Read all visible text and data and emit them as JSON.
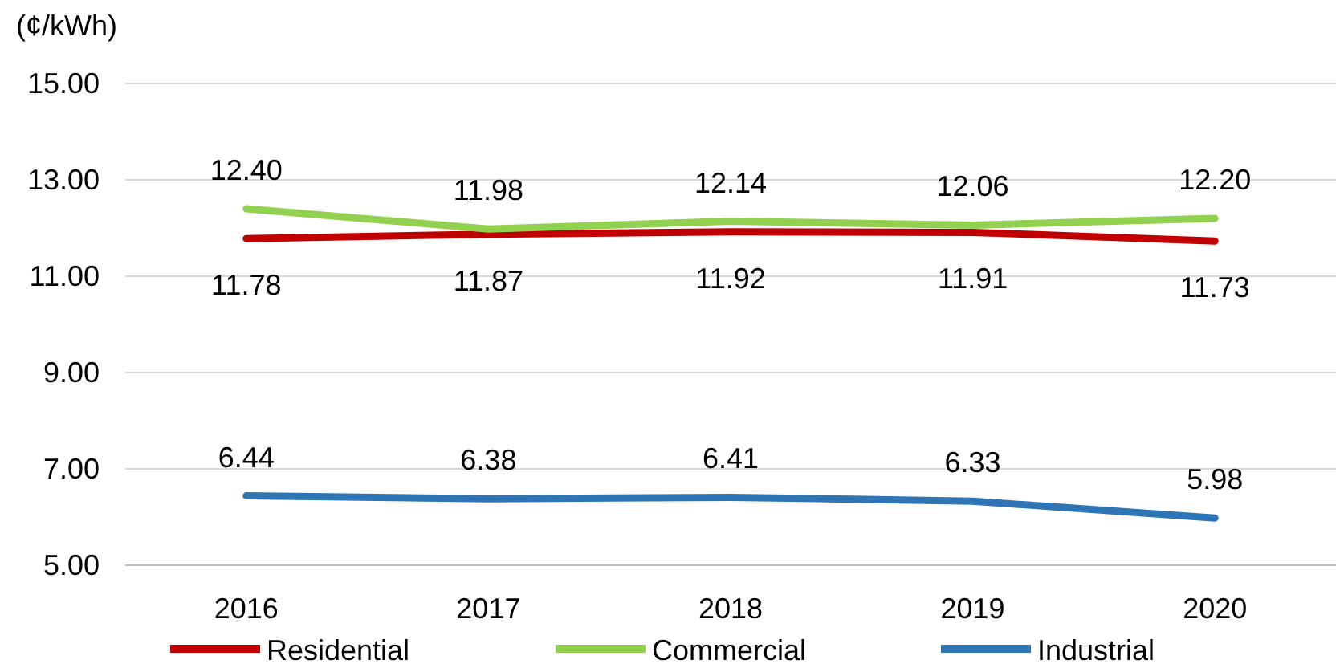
{
  "chart_data": {
    "type": "line",
    "ylabel": "(¢/kWh)",
    "categories": [
      "2016",
      "2017",
      "2018",
      "2019",
      "2020"
    ],
    "series": [
      {
        "name": "Residential",
        "color": "#c00000",
        "values": [
          11.78,
          11.87,
          11.92,
          11.91,
          11.73
        ],
        "value_labels": [
          "11.78",
          "11.87",
          "11.92",
          "11.91",
          "11.73"
        ]
      },
      {
        "name": "Commercial",
        "color": "#92d050",
        "values": [
          12.4,
          11.98,
          12.14,
          12.06,
          12.2
        ],
        "value_labels": [
          "12.40",
          "11.98",
          "12.14",
          "12.06",
          "12.20"
        ]
      },
      {
        "name": "Industrial",
        "color": "#2e75b6",
        "values": [
          6.44,
          6.38,
          6.41,
          6.33,
          5.98
        ],
        "value_labels": [
          "6.44",
          "6.38",
          "6.41",
          "6.33",
          "5.98"
        ]
      }
    ],
    "ylim": [
      5,
      15
    ],
    "yticks": [
      {
        "value": 5,
        "label": "5.00"
      },
      {
        "value": 7,
        "label": "7.00"
      },
      {
        "value": 9,
        "label": "9.00"
      },
      {
        "value": 11,
        "label": "11.00"
      },
      {
        "value": 13,
        "label": "13.00"
      },
      {
        "value": 15,
        "label": "15.00"
      }
    ],
    "grid": "y",
    "legend": "bottom",
    "marker": "none",
    "line_style": "solid"
  }
}
